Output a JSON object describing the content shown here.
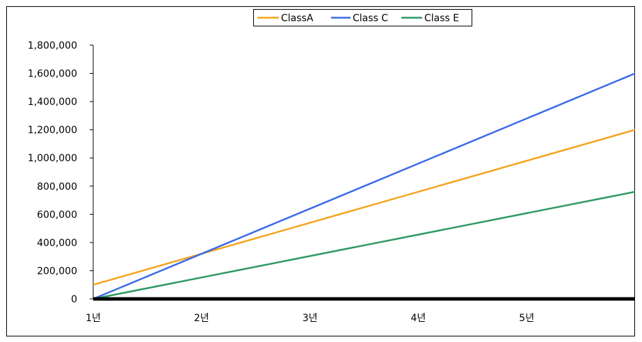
{
  "chart_data": {
    "type": "line",
    "title": "",
    "xlabel": "",
    "ylabel": "",
    "categories": [
      "1년",
      "2년",
      "3년",
      "4년",
      "5년"
    ],
    "x_range": [
      1,
      6
    ],
    "ylim": [
      0,
      1800000
    ],
    "yticks": [
      0,
      200000,
      400000,
      600000,
      800000,
      1000000,
      1200000,
      1400000,
      1600000,
      1800000
    ],
    "ytick_labels": [
      "0",
      "200,000",
      "400,000",
      "600,000",
      "800,000",
      "1,000,000",
      "1,200,000",
      "1,400,000",
      "1,600,000",
      "1,800,000"
    ],
    "grid": false,
    "legend_position": "top",
    "series": [
      {
        "name": "ClassA",
        "color": "#f5a41c",
        "x": [
          1,
          6
        ],
        "values": [
          100000,
          1200000
        ]
      },
      {
        "name": "Class C",
        "color": "#3b6be8",
        "x": [
          1,
          6
        ],
        "values": [
          0,
          1600000
        ]
      },
      {
        "name": "Class E",
        "color": "#2e9a62",
        "x": [
          1,
          6
        ],
        "values": [
          0,
          760000
        ]
      }
    ]
  }
}
